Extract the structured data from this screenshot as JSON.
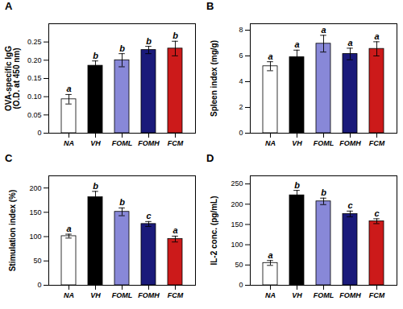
{
  "chart_data": [
    {
      "type": "bar",
      "title": "A",
      "categories": [
        "NA",
        "VH",
        "FOML",
        "FOMH",
        "FCM"
      ],
      "values": [
        0.093,
        0.185,
        0.2,
        0.228,
        0.232
      ],
      "errors": [
        0.013,
        0.013,
        0.018,
        0.01,
        0.02
      ],
      "annotations": [
        "a",
        "b",
        "b",
        "b",
        "b"
      ],
      "colors": [
        "white",
        "black",
        "#8888d8",
        "#1a1a7a",
        "#cc1a1a"
      ],
      "ylabel": "OVA-specific IgG\n(O.D. at 450 nm)",
      "ylim": [
        0,
        0.3
      ],
      "yticks": [
        0,
        0.05,
        {
          "value": 0.1,
          "label": "0.10"
        },
        0.15,
        {
          "value": 0.2,
          "label": "0.20"
        },
        0.25
      ]
    },
    {
      "type": "bar",
      "title": "B",
      "categories": [
        "NA",
        "VH",
        "FOML",
        "FOMH",
        "FCM"
      ],
      "values": [
        5.2,
        5.9,
        6.95,
        6.15,
        6.55
      ],
      "errors": [
        0.35,
        0.55,
        0.65,
        0.45,
        0.55
      ],
      "annotations": [
        "a",
        "a",
        "a",
        "a",
        "a"
      ],
      "colors": [
        "white",
        "black",
        "#8888d8",
        "#1a1a7a",
        "#cc1a1a"
      ],
      "ylabel": "Spleen index (mg/g)",
      "ylim": [
        0,
        8.5
      ],
      "yticks": [
        0,
        2,
        4,
        6,
        8
      ]
    },
    {
      "type": "bar",
      "title": "C",
      "categories": [
        "NA",
        "VH",
        "FOML",
        "FOMH",
        "FCM"
      ],
      "values": [
        101,
        181,
        151,
        126,
        95
      ],
      "errors": [
        4,
        12,
        8,
        5,
        6
      ],
      "annotations": [
        "a",
        "b",
        "b",
        "c",
        "a"
      ],
      "colors": [
        "white",
        "black",
        "#8888d8",
        "#1a1a7a",
        "#cc1a1a"
      ],
      "ylabel": "Stimulation index (%)",
      "ylim": [
        0,
        225
      ],
      "yticks": [
        0,
        50,
        100,
        150,
        200
      ]
    },
    {
      "type": "bar",
      "title": "D",
      "categories": [
        "NA",
        "VH",
        "FOML",
        "FOMH",
        "FCM"
      ],
      "values": [
        55,
        222,
        207,
        176,
        158
      ],
      "errors": [
        6,
        12,
        8,
        7,
        6
      ],
      "annotations": [
        "a",
        "b",
        "b",
        "c",
        "c"
      ],
      "colors": [
        "white",
        "black",
        "#8888d8",
        "#1a1a7a",
        "#cc1a1a"
      ],
      "ylabel": "IL-2 conc. (pg/mL)",
      "ylim": [
        0,
        270
      ],
      "yticks": [
        0,
        50,
        100,
        150,
        200,
        250
      ]
    }
  ]
}
